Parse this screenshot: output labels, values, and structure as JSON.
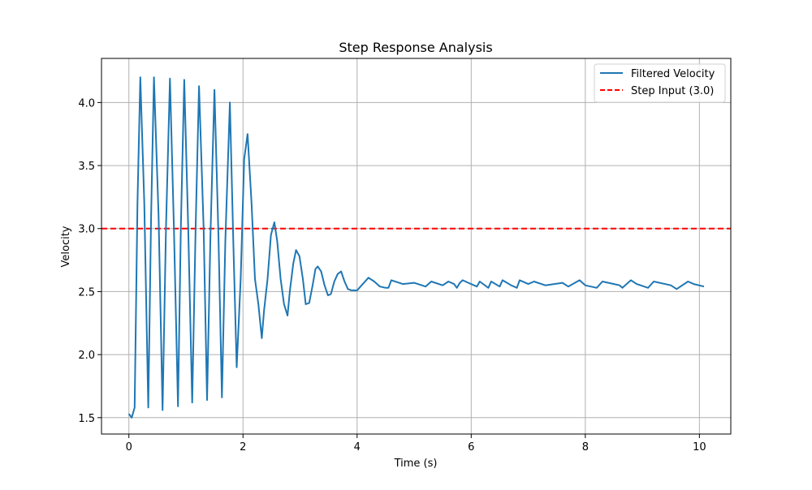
{
  "chart_data": {
    "type": "line",
    "title": "Step Response Analysis",
    "xlabel": "Time (s)",
    "ylabel": "Velocity",
    "xlim": [
      -0.48,
      10.55
    ],
    "ylim": [
      1.37,
      4.35
    ],
    "xticks": [
      0,
      2,
      4,
      6,
      8,
      10
    ],
    "yticks": [
      1.5,
      2.0,
      2.5,
      3.0,
      3.5,
      4.0
    ],
    "xtick_labels": [
      "0",
      "2",
      "4",
      "6",
      "8",
      "10"
    ],
    "ytick_labels": [
      "1.5",
      "2.0",
      "2.5",
      "3.0",
      "3.5",
      "4.0"
    ],
    "grid": true,
    "legend_position": "top-right",
    "series": [
      {
        "name": "Filtered Velocity",
        "color": "#1f77b4",
        "style": "solid",
        "x": [
          0.0,
          0.05,
          0.1,
          0.15,
          0.2,
          0.27,
          0.34,
          0.39,
          0.44,
          0.52,
          0.59,
          0.65,
          0.72,
          0.79,
          0.86,
          0.91,
          0.97,
          1.04,
          1.11,
          1.17,
          1.23,
          1.31,
          1.37,
          1.43,
          1.5,
          1.57,
          1.63,
          1.69,
          1.77,
          1.83,
          1.89,
          1.96,
          2.02,
          2.08,
          2.15,
          2.21,
          2.27,
          2.33,
          2.37,
          2.43,
          2.49,
          2.55,
          2.6,
          2.66,
          2.72,
          2.78,
          2.82,
          2.88,
          2.93,
          2.99,
          3.05,
          3.1,
          3.16,
          3.22,
          3.27,
          3.31,
          3.37,
          3.43,
          3.49,
          3.54,
          3.6,
          3.66,
          3.72,
          3.78,
          3.84,
          3.9,
          3.96,
          4.0,
          4.1,
          4.2,
          4.3,
          4.4,
          4.5,
          4.55,
          4.6,
          4.8,
          5.0,
          5.2,
          5.3,
          5.5,
          5.6,
          5.7,
          5.75,
          5.8,
          5.85,
          5.95,
          6.1,
          6.15,
          6.3,
          6.35,
          6.5,
          6.55,
          6.7,
          6.8,
          6.85,
          7.0,
          7.1,
          7.3,
          7.6,
          7.7,
          7.9,
          8.0,
          8.2,
          8.3,
          8.6,
          8.65,
          8.8,
          8.9,
          9.1,
          9.2,
          9.5,
          9.6,
          9.8,
          9.9,
          10.08
        ],
        "y": [
          1.53,
          1.5,
          1.58,
          3.2,
          4.2,
          3.2,
          1.58,
          3.1,
          4.2,
          3.1,
          1.56,
          3.0,
          4.19,
          3.0,
          1.59,
          3.0,
          4.18,
          3.0,
          1.62,
          3.0,
          4.13,
          3.0,
          1.64,
          2.95,
          4.1,
          2.95,
          1.66,
          2.9,
          4.0,
          2.9,
          1.9,
          2.6,
          3.55,
          3.75,
          3.2,
          2.6,
          2.4,
          2.13,
          2.35,
          2.6,
          2.95,
          3.05,
          2.9,
          2.6,
          2.4,
          2.31,
          2.5,
          2.72,
          2.83,
          2.78,
          2.6,
          2.4,
          2.41,
          2.55,
          2.68,
          2.7,
          2.66,
          2.55,
          2.47,
          2.48,
          2.58,
          2.64,
          2.66,
          2.58,
          2.52,
          2.51,
          2.51,
          2.51,
          2.56,
          2.61,
          2.58,
          2.54,
          2.53,
          2.53,
          2.59,
          2.56,
          2.57,
          2.54,
          2.58,
          2.55,
          2.58,
          2.56,
          2.53,
          2.57,
          2.59,
          2.57,
          2.54,
          2.58,
          2.53,
          2.58,
          2.54,
          2.59,
          2.55,
          2.53,
          2.59,
          2.56,
          2.58,
          2.55,
          2.57,
          2.54,
          2.59,
          2.55,
          2.53,
          2.58,
          2.55,
          2.53,
          2.59,
          2.56,
          2.53,
          2.58,
          2.55,
          2.52,
          2.58,
          2.56,
          2.54
        ]
      },
      {
        "name": "Step Input (3.0)",
        "color": "#ff0000",
        "style": "dashed",
        "y_const": 3.0
      }
    ]
  }
}
